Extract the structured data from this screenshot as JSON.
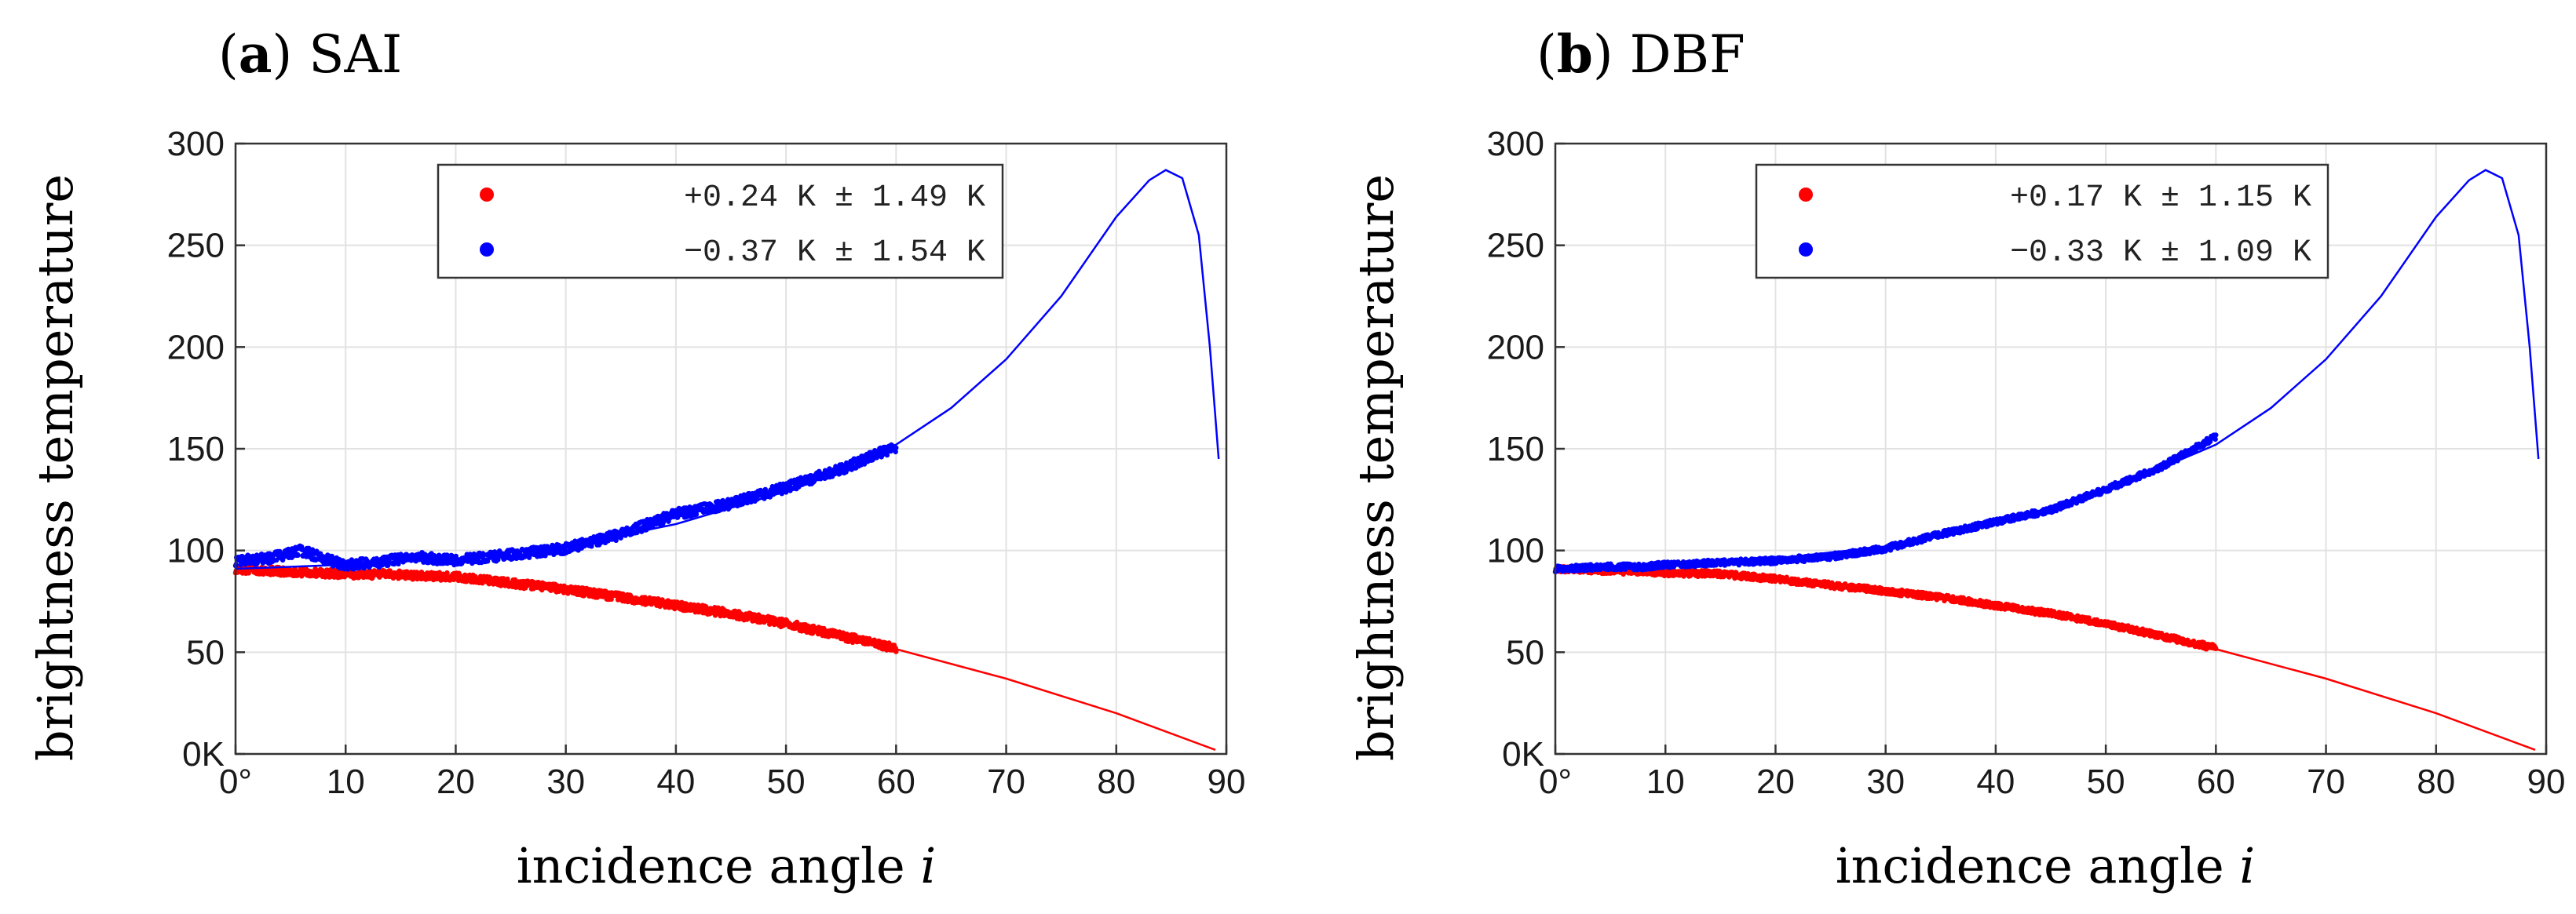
{
  "chart_data": [
    {
      "type": "scatter",
      "panel_label": "a",
      "title": "SAI",
      "xlabel": "incidence angle",
      "xlabel_var": "i",
      "ylabel": "brightness temperature",
      "xlim": [
        0,
        90
      ],
      "ylim": [
        0,
        300
      ],
      "xticks": [
        "0°",
        "10",
        "20",
        "30",
        "40",
        "50",
        "60",
        "70",
        "80",
        "90"
      ],
      "yticks": [
        "0K",
        "50",
        "100",
        "150",
        "200",
        "250",
        "300"
      ],
      "grid": true,
      "legend_placement": "top-center",
      "series": [
        {
          "name": "+0.24 K ± 1.49 K",
          "color": "#ff0000",
          "scatter": {
            "x": [
              0,
              5,
              10,
              15,
              20,
              25,
              30,
              35,
              40,
              45,
              50,
              55,
              60
            ],
            "y": [
              91,
              89.5,
              88.5,
              88,
              87,
              84,
              81,
              77,
              73,
              69,
              64,
              58,
              52
            ]
          },
          "scatter_spread": 4,
          "model": {
            "x": [
              0,
              10,
              20,
              30,
              40,
              50,
              60,
              70,
              80,
              89
            ],
            "y": [
              91,
              89,
              86.5,
              81.5,
              74,
              64,
              51.5,
              37,
              20,
              2
            ]
          }
        },
        {
          "name": "−0.37 K ± 1.54 K",
          "color": "#0000ff",
          "scatter": {
            "x": [
              0,
              3,
              6,
              8,
              10,
              13,
              16,
              20,
              25,
              30,
              35,
              40,
              45,
              50,
              55,
              60
            ],
            "y": [
              95,
              96,
              100,
              96,
              93,
              94,
              97,
              95,
              98,
              101,
              108,
              118,
              123,
              131,
              140,
              151
            ]
          },
          "scatter_spread": 5,
          "model": {
            "x": [
              0,
              10,
              20,
              30,
              40,
              50,
              60,
              65,
              70,
              75,
              80,
              83,
              84.5,
              86,
              87.5,
              88.5,
              89.3
            ],
            "y": [
              91,
              93,
              96,
              102,
              113,
              129,
              152,
              170,
              194,
              225,
              264,
              282,
              287,
              283,
              255,
              200,
              145
            ]
          }
        }
      ]
    },
    {
      "type": "scatter",
      "panel_label": "b",
      "title": "DBF",
      "xlabel": "incidence angle",
      "xlabel_var": "i",
      "ylabel": "brightness temperature",
      "xlim": [
        0,
        90
      ],
      "ylim": [
        0,
        300
      ],
      "xticks": [
        "0°",
        "10",
        "20",
        "30",
        "40",
        "50",
        "60",
        "70",
        "80",
        "90"
      ],
      "yticks": [
        "0K",
        "50",
        "100",
        "150",
        "200",
        "250",
        "300"
      ],
      "grid": true,
      "legend_placement": "top-center",
      "series": [
        {
          "name": "+0.17 K ± 1.15 K",
          "color": "#ff0000",
          "scatter": {
            "x": [
              0,
              5,
              10,
              15,
              20,
              25,
              30,
              35,
              40,
              45,
              50,
              55,
              60
            ],
            "y": [
              91,
              90,
              89,
              88.5,
              86,
              83,
              80,
              77,
              73,
              69,
              64,
              58,
              52
            ]
          },
          "scatter_spread": 3,
          "model": {
            "x": [
              0,
              10,
              20,
              30,
              40,
              50,
              60,
              70,
              80,
              89
            ],
            "y": [
              91,
              89,
              86.5,
              81.5,
              74,
              64,
              51.5,
              37,
              20,
              2
            ]
          }
        },
        {
          "name": "−0.33 K ± 1.09 K",
          "color": "#0000ff",
          "scatter": {
            "x": [
              0,
              5,
              8,
              10,
              15,
              20,
              25,
              30,
              35,
              40,
              45,
              50,
              55,
              60
            ],
            "y": [
              91,
              92,
              92,
              93,
              94,
              95,
              97,
              101,
              108,
              114,
              120,
              130,
              141,
              156
            ]
          },
          "scatter_spread": 3,
          "model": {
            "x": [
              0,
              10,
              20,
              30,
              40,
              50,
              60,
              65,
              70,
              75,
              80,
              83,
              84.5,
              86,
              87.5,
              88.5,
              89.3
            ],
            "y": [
              91,
              93,
              96,
              102,
              113,
              129,
              152,
              170,
              194,
              225,
              264,
              282,
              287,
              283,
              255,
              200,
              145
            ]
          }
        }
      ]
    }
  ]
}
